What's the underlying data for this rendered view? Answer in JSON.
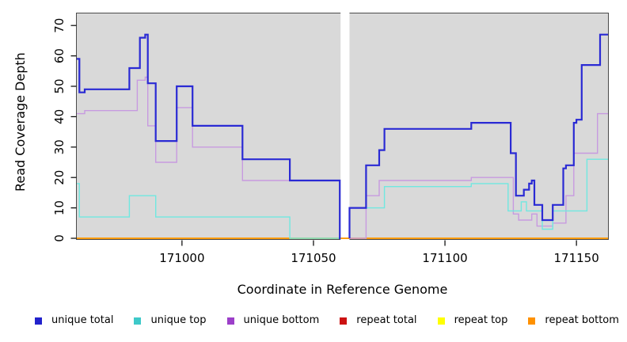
{
  "axes": {
    "x_title": "Coordinate in Reference Genome",
    "y_title": "Read Coverage Depth"
  },
  "legend": {
    "items": [
      {
        "label": "unique total",
        "color": "#2222cc"
      },
      {
        "label": "unique top",
        "color": "#3ec9c9"
      },
      {
        "label": "unique bottom",
        "color": "#9c3fc9"
      },
      {
        "label": "repeat total",
        "color": "#cc1111"
      },
      {
        "label": "repeat top",
        "color": "#ffff00"
      },
      {
        "label": "repeat bottom",
        "color": "#ff9100"
      }
    ]
  },
  "chart_data": {
    "type": "line",
    "subtype": "step-coverage",
    "title": "",
    "xlabel": "Coordinate in Reference Genome",
    "ylabel": "Read Coverage Depth",
    "x_range": [
      170960,
      171162
    ],
    "y_range": [
      0,
      74
    ],
    "x_ticks": [
      171000,
      171050,
      171100,
      171150
    ],
    "y_ticks": [
      0,
      10,
      20,
      30,
      40,
      50,
      60,
      70
    ],
    "masked_gap_x": [
      171060.3,
      171063.7
    ],
    "plot_background": "#d9d9d9",
    "grid": false,
    "legend_position": "bottom",
    "series": [
      {
        "name": "repeat total",
        "color": "#cc1111",
        "line_width": 1.4,
        "segments": [
          {
            "points": [
              [
                170960,
                0
              ]
            ],
            "end": 171162
          }
        ]
      },
      {
        "name": "repeat top",
        "color": "#ffff00",
        "line_width": 1.4,
        "segments": [
          {
            "points": [
              [
                170960,
                0
              ]
            ],
            "end": 171162
          }
        ]
      },
      {
        "name": "repeat bottom",
        "color": "#ff9100",
        "line_width": 1.6,
        "segments": [
          {
            "points": [
              [
                170960,
                0
              ]
            ],
            "end": 171162
          }
        ]
      },
      {
        "name": "unique bottom",
        "color": "#c79ae0",
        "line_width": 1.4,
        "segments": [
          {
            "points": [
              [
                170960,
                41
              ],
              [
                170963,
                42
              ],
              [
                170983,
                52
              ],
              [
                170986,
                53
              ],
              [
                170987,
                37
              ],
              [
                170990,
                25
              ],
              [
                170998,
                43
              ],
              [
                171004,
                30
              ],
              [
                171023,
                19
              ],
              [
                171060,
                0
              ]
            ],
            "end": 171060.3
          },
          {
            "points": [
              [
                171063.7,
                0
              ],
              [
                171070,
                14
              ],
              [
                171075,
                19
              ],
              [
                171110,
                20
              ],
              [
                171126,
                8
              ],
              [
                171128,
                6
              ],
              [
                171133,
                8
              ],
              [
                171135,
                4
              ],
              [
                171141,
                5
              ],
              [
                171146,
                14
              ],
              [
                171149,
                28
              ],
              [
                171158,
                41
              ]
            ],
            "end": 171162
          }
        ]
      },
      {
        "name": "unique top",
        "color": "#70e8e0",
        "line_width": 1.4,
        "segments": [
          {
            "points": [
              [
                170960,
                18
              ],
              [
                170961,
                7
              ],
              [
                170980,
                14
              ],
              [
                170990,
                7
              ],
              [
                171041,
                0
              ]
            ],
            "end": 171060.3
          },
          {
            "points": [
              [
                171063.7,
                0
              ],
              [
                171063.7,
                10
              ],
              [
                171077,
                17
              ],
              [
                171110,
                18
              ],
              [
                171124,
                9
              ],
              [
                171129,
                12
              ],
              [
                171131,
                9
              ],
              [
                171137,
                3
              ],
              [
                171141,
                9
              ],
              [
                171154,
                26
              ]
            ],
            "end": 171162
          }
        ]
      },
      {
        "name": "unique total",
        "color": "#2a2ad4",
        "line_width": 2.2,
        "segments": [
          {
            "points": [
              [
                170960,
                59
              ],
              [
                170961,
                48
              ],
              [
                170963,
                49
              ],
              [
                170980,
                56
              ],
              [
                170984,
                66
              ],
              [
                170986,
                67
              ],
              [
                170987,
                51
              ],
              [
                170990,
                32
              ],
              [
                170998,
                50
              ],
              [
                171004,
                37
              ],
              [
                171023,
                26
              ],
              [
                171041,
                19
              ],
              [
                171060,
                0
              ]
            ],
            "end": 171060.3
          },
          {
            "points": [
              [
                171063.7,
                0
              ],
              [
                171063.7,
                10
              ],
              [
                171070,
                24
              ],
              [
                171075,
                29
              ],
              [
                171077,
                36
              ],
              [
                171110,
                38
              ],
              [
                171125,
                28
              ],
              [
                171127,
                14
              ],
              [
                171130,
                16
              ],
              [
                171132,
                18
              ],
              [
                171133,
                19
              ],
              [
                171134,
                11
              ],
              [
                171137,
                6
              ],
              [
                171141,
                11
              ],
              [
                171145,
                23
              ],
              [
                171146,
                24
              ],
              [
                171149,
                38
              ],
              [
                171150,
                39
              ],
              [
                171152,
                57
              ],
              [
                171159,
                67
              ]
            ],
            "end": 171162
          }
        ]
      }
    ]
  }
}
